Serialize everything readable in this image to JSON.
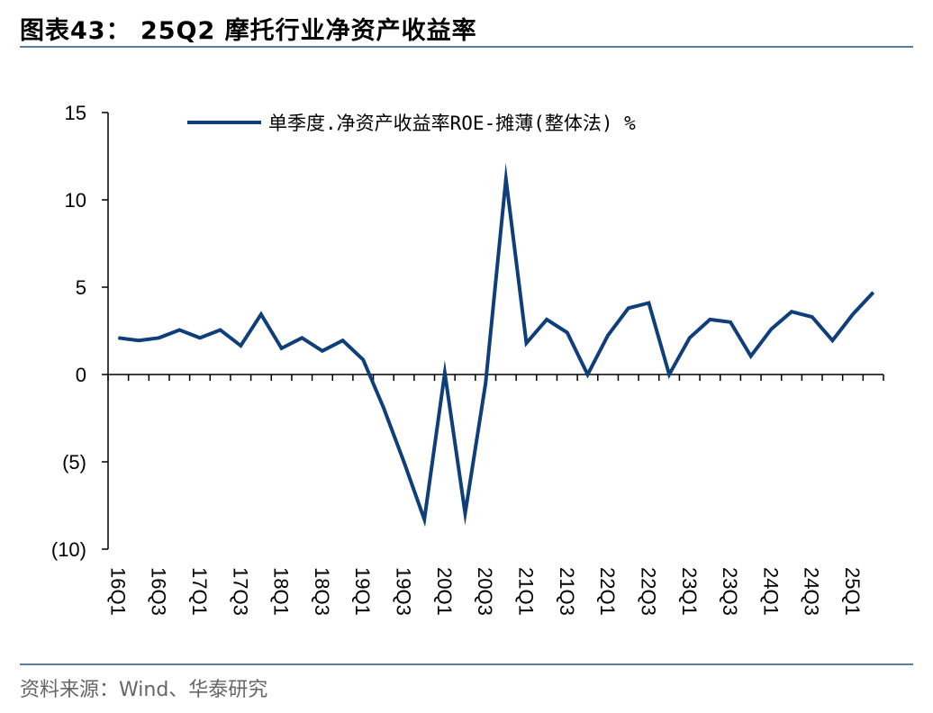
{
  "header": {
    "title": "图表43： 25Q2 摩托行业净资产收益率"
  },
  "footer": {
    "source": "资料来源：Wind、华泰研究"
  },
  "colors": {
    "series": "#0f3f7b",
    "rule": "#5a7fa6"
  },
  "chart_data": {
    "type": "line",
    "title": "",
    "xlabel": "",
    "ylabel": "",
    "ylim": [
      -10,
      15
    ],
    "yticks": [
      15,
      10,
      5,
      0,
      -5,
      -10
    ],
    "ytick_labels": [
      "15",
      "10",
      "5",
      "0",
      "(5)",
      "(10)"
    ],
    "legend_position": "top",
    "grid": false,
    "x": [
      "16Q1",
      "16Q2",
      "16Q3",
      "16Q4",
      "17Q1",
      "17Q2",
      "17Q3",
      "17Q4",
      "18Q1",
      "18Q2",
      "18Q3",
      "18Q4",
      "19Q1",
      "19Q2",
      "19Q3",
      "19Q4",
      "20Q1",
      "20Q2",
      "20Q3",
      "20Q4",
      "21Q1",
      "21Q2",
      "21Q3",
      "21Q4",
      "22Q1",
      "22Q2",
      "22Q3",
      "22Q4",
      "23Q1",
      "23Q2",
      "23Q3",
      "23Q4",
      "24Q1",
      "24Q2",
      "24Q3",
      "24Q4",
      "25Q1",
      "25Q2"
    ],
    "x_tick_labels": [
      "16Q1",
      "16Q3",
      "17Q1",
      "17Q3",
      "18Q1",
      "18Q3",
      "19Q1",
      "19Q3",
      "20Q1",
      "20Q3",
      "21Q1",
      "21Q3",
      "22Q1",
      "22Q3",
      "23Q1",
      "23Q3",
      "24Q1",
      "24Q3",
      "25Q1"
    ],
    "series": [
      {
        "name": "单季度.净资产收益率ROE-摊薄(整体法) %",
        "values": [
          2.1,
          1.95,
          2.1,
          2.55,
          2.1,
          2.55,
          1.65,
          3.45,
          1.5,
          2.1,
          1.35,
          1.95,
          0.85,
          -1.9,
          -5.0,
          -8.3,
          0.1,
          -7.95,
          -0.5,
          11.2,
          1.8,
          3.15,
          2.4,
          0.0,
          2.25,
          3.8,
          4.1,
          0.0,
          2.1,
          3.15,
          3.0,
          1.05,
          2.6,
          3.6,
          3.3,
          1.95,
          3.45,
          4.7
        ]
      }
    ]
  }
}
